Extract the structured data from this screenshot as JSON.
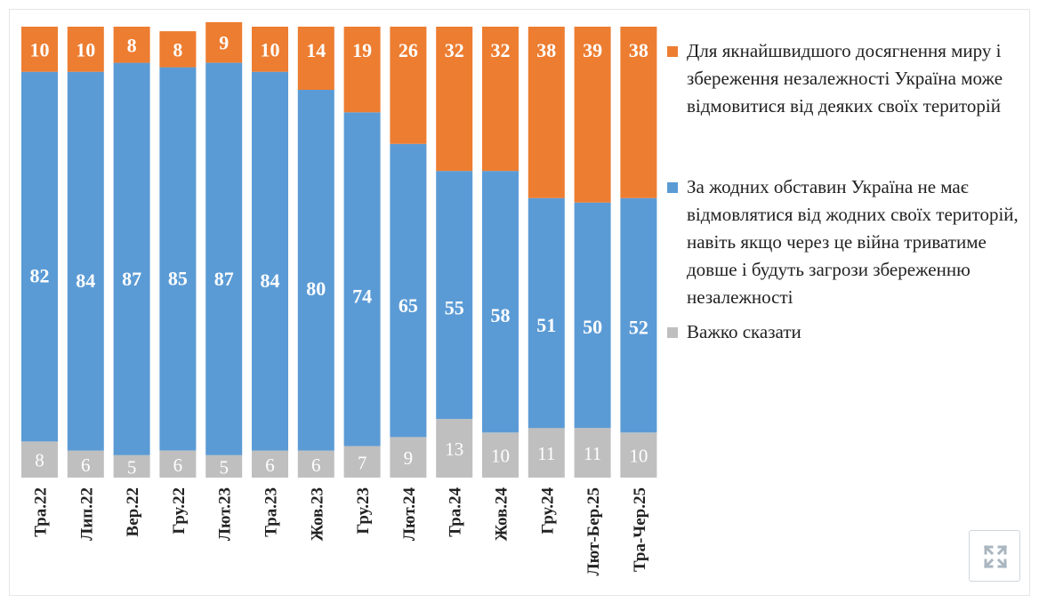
{
  "chart_data": {
    "type": "bar",
    "stacked": true,
    "categories": [
      "Тра.22",
      "Лип.22",
      "Вер.22",
      "Гру.22",
      "Лют.23",
      "Тра.23",
      "Жов.23",
      "Гру.23",
      "Лют.24",
      "Тра.24",
      "Жов.24",
      "Гру.24",
      "Лют-Бер.25",
      "Тра-Чер.25"
    ],
    "series": [
      {
        "name": "Важко сказати",
        "color": "#bfbfbf",
        "values": [
          8,
          6,
          5,
          6,
          5,
          6,
          6,
          7,
          9,
          13,
          10,
          11,
          11,
          10
        ]
      },
      {
        "name": "За жодних обставин Україна не має відмовлятися від жодних своїх територій, навіть якщо через це війна триватиме довше і будуть загрози збереженню незалежності",
        "color": "#5b9bd5",
        "values": [
          82,
          84,
          87,
          85,
          87,
          84,
          80,
          74,
          65,
          55,
          58,
          51,
          50,
          52
        ]
      },
      {
        "name": "Для якнайшвидшого досягнення миру і збереження незалежності Україна може відмовитися від деяких своїх територій",
        "color": "#ed7d31",
        "values": [
          10,
          10,
          8,
          8,
          9,
          10,
          14,
          19,
          26,
          32,
          32,
          38,
          39,
          38
        ]
      }
    ],
    "ylim": [
      0,
      100
    ],
    "legend_position": "right"
  },
  "legend": [
    {
      "label": "Для якнайшвидшого досягнення миру і збереження незалежності Україна може відмовитися від деяких своїх територій",
      "color": "#ed7d31"
    },
    {
      "label": "За жодних обставин Україна не має відмовлятися від жодних своїх територій, навіть якщо через це війна триватиме довше і будуть загрози збереженню незалежності",
      "color": "#5b9bd5"
    },
    {
      "label": "Важко сказати",
      "color": "#bfbfbf"
    }
  ],
  "toolbar": {
    "expand_icon": "expand-icon"
  }
}
